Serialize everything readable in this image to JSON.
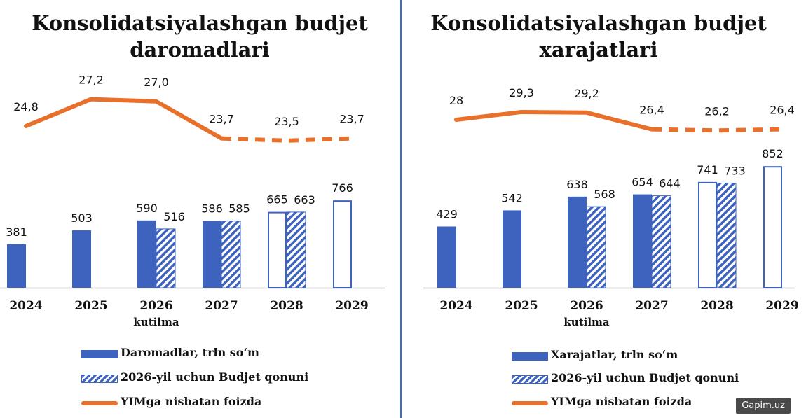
{
  "colors": {
    "bar": "#3e63bf",
    "line": "#e8702a",
    "text": "#111111",
    "axis": "#bfbfbf"
  },
  "legend_left": {
    "bar": "Daromadlar, trln so‘m",
    "hatch": "2026-yil uchun Budjet qonuni",
    "line": "YIMga nisbatan foizda"
  },
  "legend_right": {
    "bar": "Xarajatlar, trln so‘m",
    "hatch": "2026-yil uchun Budjet qonuni",
    "line": "YIMga nisbatan foizda"
  },
  "watermark": "Gapim.uz",
  "chart_data": [
    {
      "type": "bar",
      "title_lines": [
        "Konsolidatsiyalashgan budjet",
        "daromadlari"
      ],
      "categories": [
        "2024",
        "2025",
        "2026",
        "2027",
        "2028",
        "2029"
      ],
      "category_sublabels": [
        "",
        "",
        "kutilma",
        "",
        "",
        ""
      ],
      "series": [
        {
          "name": "Daromadlar, trln so‘m",
          "values": [
            381,
            503,
            590,
            586,
            665,
            766
          ],
          "style": [
            "solid",
            "solid",
            "solid",
            "solid",
            "outline",
            "outline"
          ]
        },
        {
          "name": "2026-yil uchun Budjet qonuni",
          "values": [
            null,
            null,
            516,
            585,
            663,
            null
          ],
          "style": "hatched"
        },
        {
          "name": "YIMga nisbatan foizda",
          "type": "line",
          "values": [
            24.8,
            27.2,
            27.0,
            23.7,
            23.5,
            23.7
          ],
          "labels": [
            "24,8",
            "27,2",
            "27,0",
            "23,7",
            "23,5",
            "23,7"
          ],
          "dashed_from_index": 3
        }
      ]
    },
    {
      "type": "bar",
      "title_lines": [
        "Konsolidatsiyalashgan budjet",
        "xarajatlari"
      ],
      "categories": [
        "2024",
        "2025",
        "2026",
        "2027",
        "2028",
        "2029"
      ],
      "category_sublabels": [
        "",
        "",
        "kutilma",
        "",
        "",
        ""
      ],
      "series": [
        {
          "name": "Xarajatlar, trln so‘m",
          "values": [
            429,
            542,
            638,
            654,
            741,
            852
          ],
          "style": [
            "solid",
            "solid",
            "solid",
            "solid",
            "outline",
            "outline"
          ]
        },
        {
          "name": "2026-yil uchun Budjet qonuni",
          "values": [
            null,
            null,
            568,
            644,
            733,
            null
          ],
          "style": "hatched"
        },
        {
          "name": "YIMga nisbatan foizda",
          "type": "line",
          "values": [
            28,
            29.3,
            29.2,
            26.4,
            26.2,
            26.4
          ],
          "labels": [
            "28",
            "29,3",
            "29,2",
            "26,4",
            "26,2",
            "26,4"
          ],
          "dashed_from_index": 3
        }
      ]
    }
  ]
}
